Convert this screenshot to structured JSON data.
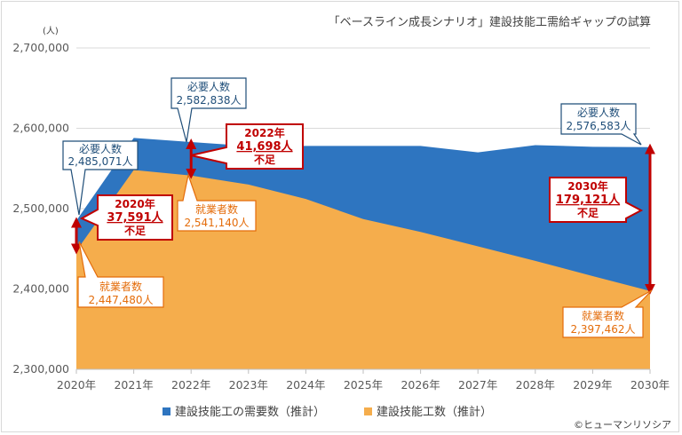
{
  "chart_data": {
    "type": "area",
    "title": "「ベースライン成長シナリオ」建設技能工需給ギャップの試算",
    "unit": "(人)",
    "x": [
      "2020年",
      "2021年",
      "2022年",
      "2023年",
      "2024年",
      "2025年",
      "2026年",
      "2027年",
      "2028年",
      "2029年",
      "2030年"
    ],
    "ylim": [
      2300000,
      2700000
    ],
    "yticks": [
      "2,300,000",
      "2,400,000",
      "2,500,000",
      "2,600,000",
      "2,700,000"
    ],
    "grid": true,
    "series": [
      {
        "name": "建設技能工の需要数（推計）",
        "color": "#2e75c0",
        "values": [
          2485071,
          2588000,
          2582838,
          2578000,
          2578000,
          2578000,
          2578000,
          2570000,
          2579000,
          2577000,
          2576583
        ]
      },
      {
        "name": "建設技能工数（推計）",
        "color": "#f5ad4c",
        "values": [
          2447480,
          2548000,
          2541140,
          2530000,
          2512000,
          2487000,
          2471000,
          2453000,
          2435000,
          2416000,
          2397462
        ]
      }
    ],
    "legend_position": "bottom",
    "annotations": {
      "demand_label": "必要人数",
      "supply_label": "就業者数",
      "shortage_label": "不足",
      "demand_2020": "2,485,071人",
      "supply_2020": "2,447,480人",
      "gap_2020_year": "2020年",
      "gap_2020": "37,591人",
      "demand_2022": "2,582,838人",
      "supply_2022": "2,541,140人",
      "gap_2022_year": "2022年",
      "gap_2022": "41,698人",
      "demand_2030": "2,576,583人",
      "supply_2030": "2,397,462人",
      "gap_2030_year": "2030年",
      "gap_2030": "179,121人"
    }
  },
  "copyright": "©ヒューマンリソシア",
  "colors": {
    "demand": "#2e75c0",
    "supply": "#f5ad4c",
    "shortage": "#c00000",
    "grid": "#d9d9d9",
    "callout_blue": "#1f4e79",
    "callout_orange": "#e46c0a"
  }
}
